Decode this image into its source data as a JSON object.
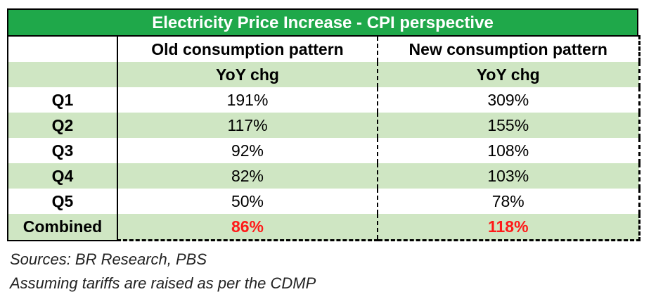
{
  "chart_data": {
    "type": "table",
    "title": "Electricity Price Increase - CPI perspective",
    "columns": [
      "Old consumption pattern",
      "New consumption pattern"
    ],
    "subheaders": [
      "YoY chg",
      "YoY chg"
    ],
    "rows": [
      {
        "label": "Q1",
        "values": [
          "191%",
          "309%"
        ]
      },
      {
        "label": "Q2",
        "values": [
          "117%",
          "155%"
        ]
      },
      {
        "label": "Q3",
        "values": [
          "92%",
          "108%"
        ]
      },
      {
        "label": "Q4",
        "values": [
          "82%",
          "103%"
        ]
      },
      {
        "label": "Q5",
        "values": [
          "50%",
          "78%"
        ]
      },
      {
        "label": "Combined",
        "values": [
          "86%",
          "118%"
        ]
      }
    ],
    "notes": [
      "Sources: BR Research, PBS",
      "Assuming tariffs are raised as per the CDMP"
    ]
  },
  "colors": {
    "header_green": "#1fa84a",
    "band_green": "#cfe6c3",
    "highlight_red": "#ff1a1a"
  }
}
